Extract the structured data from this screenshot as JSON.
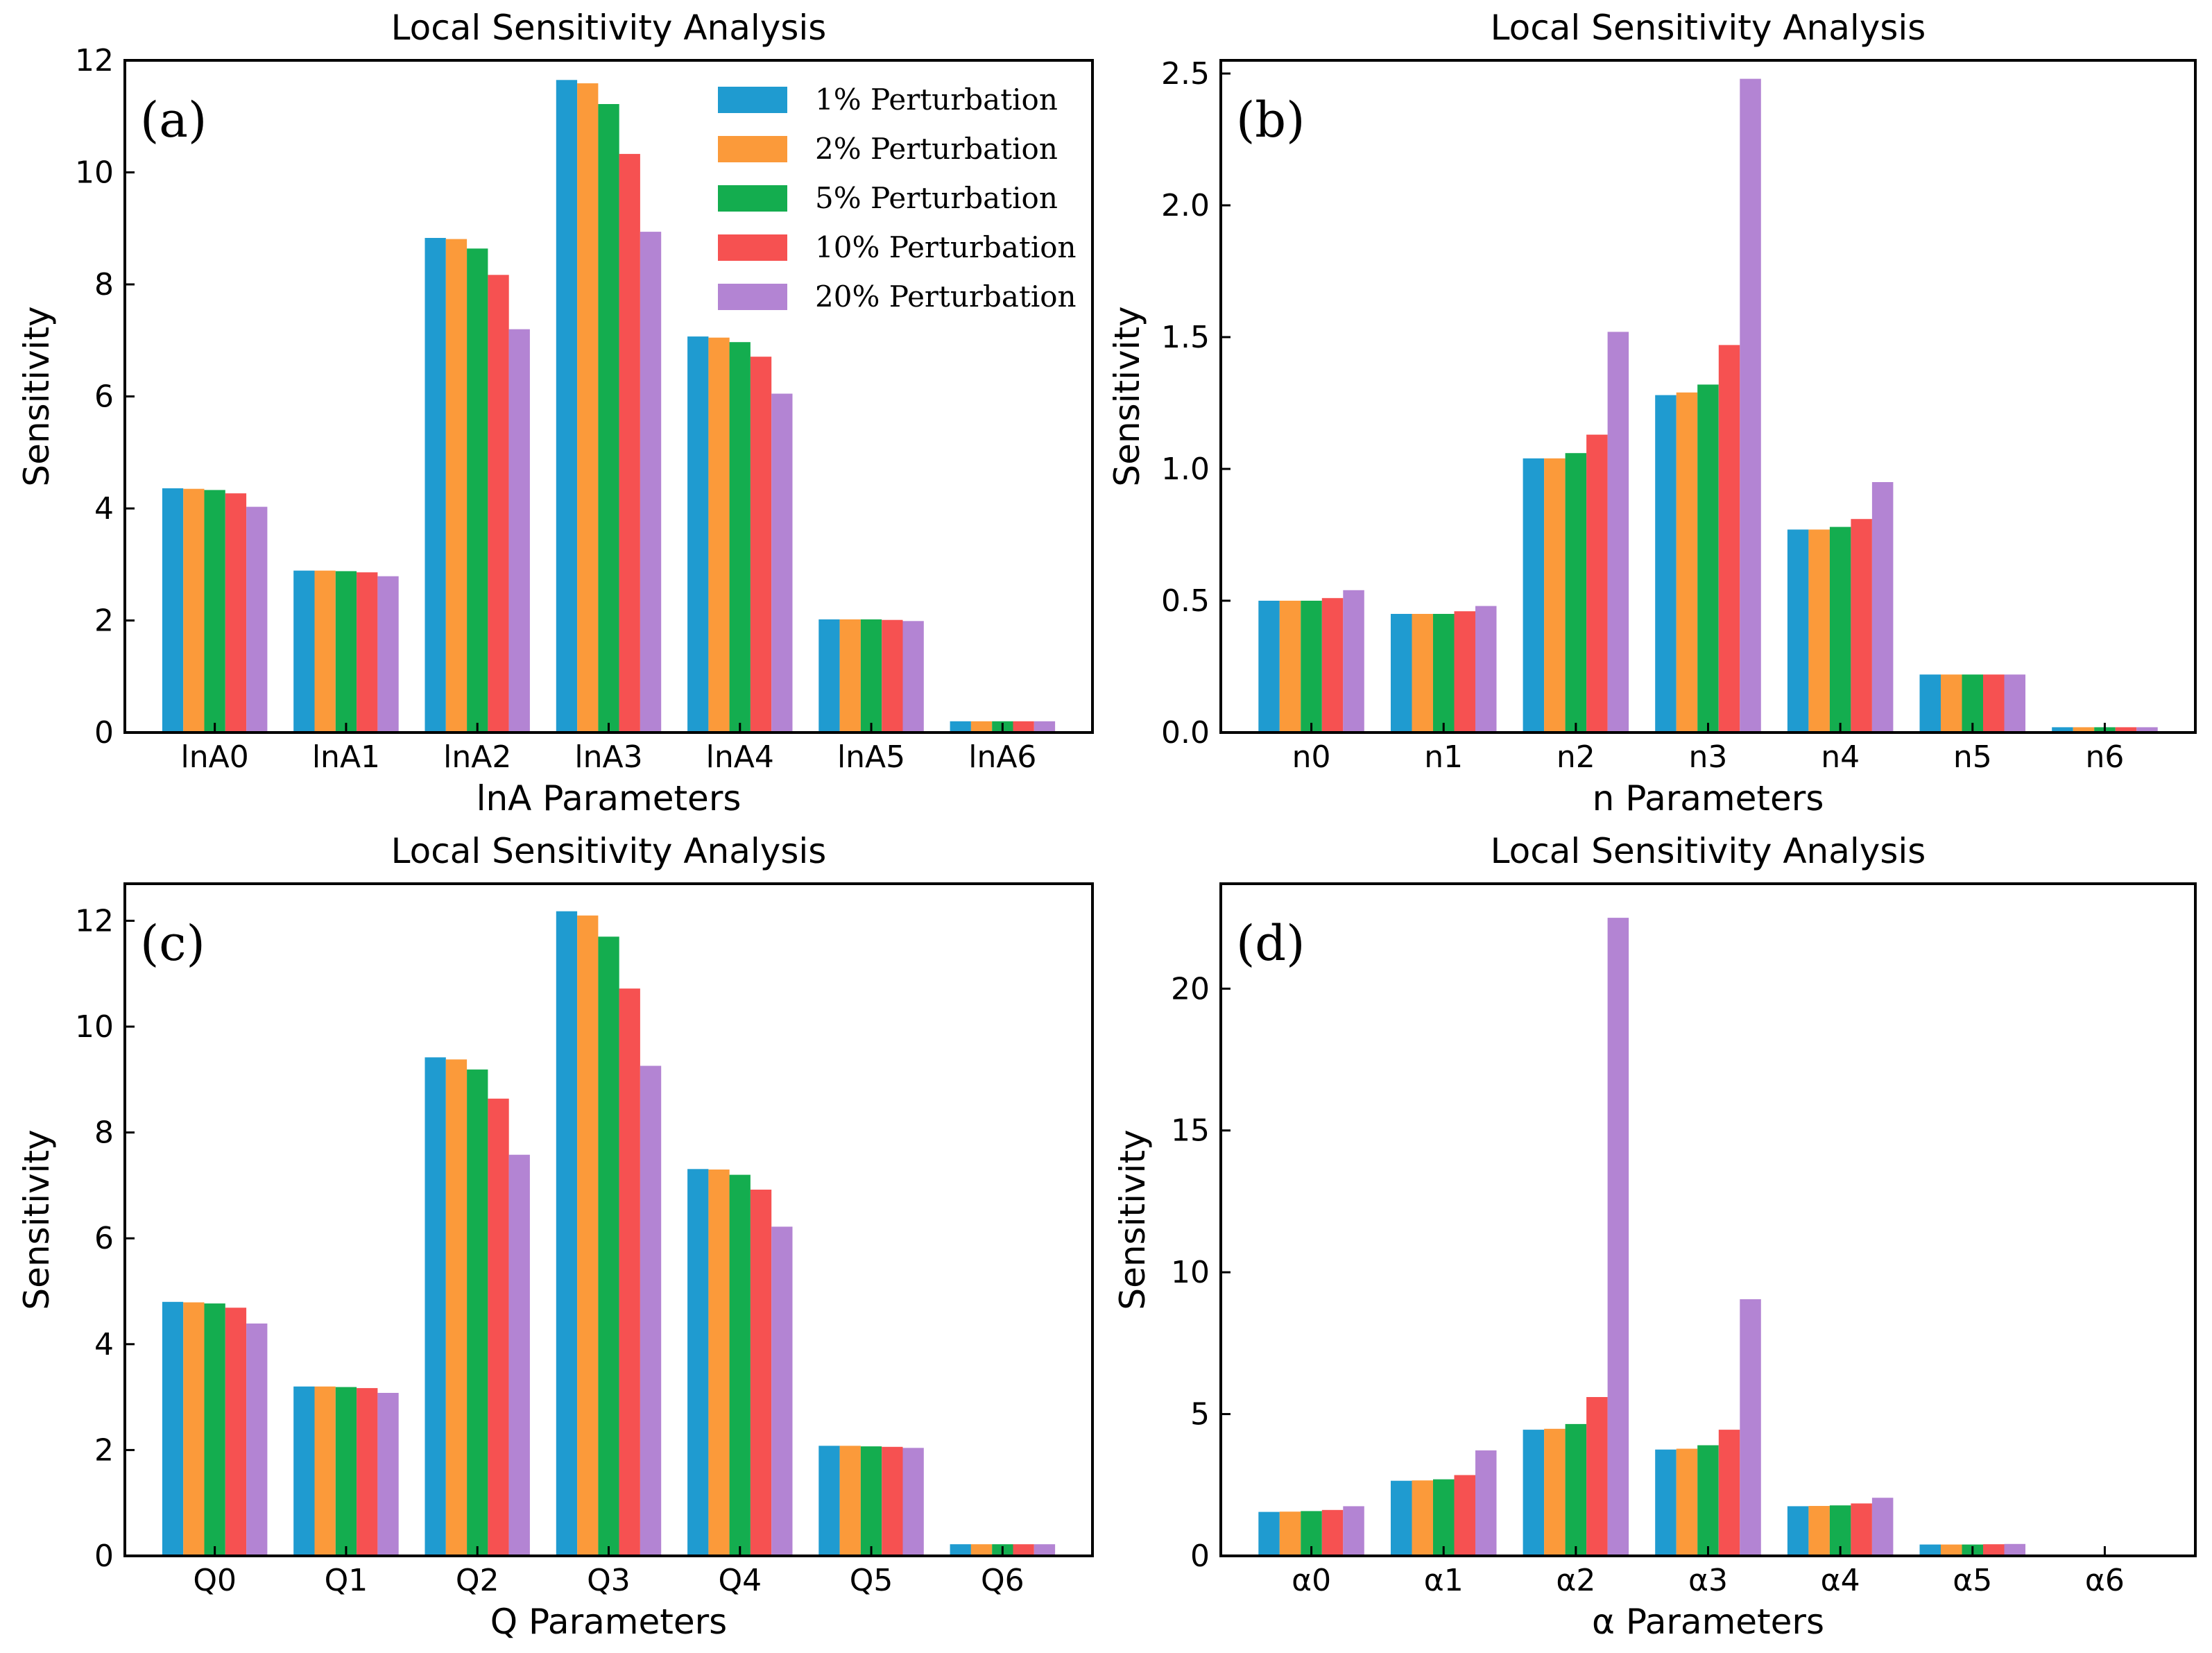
{
  "colors": {
    "p1": "#1f9bd0",
    "p2": "#fb9a3a",
    "p5": "#14ad4f",
    "p10": "#f65151",
    "p20": "#b384d3"
  },
  "legend": [
    {
      "label": "1% Perturbation",
      "color_key": "p1"
    },
    {
      "label": "2% Perturbation",
      "color_key": "p2"
    },
    {
      "label": "5% Perturbation",
      "color_key": "p5"
    },
    {
      "label": "10% Perturbation",
      "color_key": "p10"
    },
    {
      "label": "20% Perturbation",
      "color_key": "p20"
    }
  ],
  "chart_data": [
    {
      "type": "bar",
      "panel_label": "(a)",
      "title": "Local Sensitivity Analysis",
      "xlabel": "lnA Parameters",
      "ylabel": "Sensitivity",
      "ylim": [
        0,
        12
      ],
      "yticks": [
        0,
        2,
        4,
        6,
        8,
        10,
        12
      ],
      "ytick_labels": [
        "0",
        "2",
        "4",
        "6",
        "8",
        "10",
        "12"
      ],
      "categories": [
        "lnA0",
        "lnA1",
        "lnA2",
        "lnA3",
        "lnA4",
        "lnA5",
        "lnA6"
      ],
      "series": [
        {
          "name": "1% Perturbation",
          "values": [
            4.36,
            2.89,
            8.83,
            11.65,
            7.07,
            2.02,
            0.2
          ]
        },
        {
          "name": "2% Perturbation",
          "values": [
            4.35,
            2.89,
            8.81,
            11.59,
            7.05,
            2.02,
            0.2
          ]
        },
        {
          "name": "5% Perturbation",
          "values": [
            4.33,
            2.88,
            8.64,
            11.22,
            6.97,
            2.02,
            0.2
          ]
        },
        {
          "name": "10% Perturbation",
          "values": [
            4.27,
            2.86,
            8.17,
            10.33,
            6.71,
            2.01,
            0.2
          ]
        },
        {
          "name": "20% Perturbation",
          "values": [
            4.03,
            2.79,
            7.2,
            8.94,
            6.05,
            1.99,
            0.2
          ]
        }
      ]
    },
    {
      "type": "bar",
      "panel_label": "(b)",
      "title": "Local Sensitivity Analysis",
      "xlabel": "n Parameters",
      "ylabel": "Sensitivity",
      "ylim": [
        0,
        2.55
      ],
      "yticks": [
        0,
        0.5,
        1.0,
        1.5,
        2.0,
        2.5
      ],
      "ytick_labels": [
        "0.0",
        "0.5",
        "1.0",
        "1.5",
        "2.0",
        "2.5"
      ],
      "categories": [
        "n0",
        "n1",
        "n2",
        "n3",
        "n4",
        "n5",
        "n6"
      ],
      "series": [
        {
          "name": "1% Perturbation",
          "values": [
            0.5,
            0.45,
            1.04,
            1.28,
            0.77,
            0.22,
            0.02
          ]
        },
        {
          "name": "2% Perturbation",
          "values": [
            0.5,
            0.45,
            1.04,
            1.29,
            0.77,
            0.22,
            0.02
          ]
        },
        {
          "name": "5% Perturbation",
          "values": [
            0.5,
            0.45,
            1.06,
            1.32,
            0.78,
            0.22,
            0.02
          ]
        },
        {
          "name": "10% Perturbation",
          "values": [
            0.51,
            0.46,
            1.13,
            1.47,
            0.81,
            0.22,
            0.02
          ]
        },
        {
          "name": "20% Perturbation",
          "values": [
            0.54,
            0.48,
            1.52,
            2.48,
            0.95,
            0.22,
            0.02
          ]
        }
      ]
    },
    {
      "type": "bar",
      "panel_label": "(c)",
      "title": "Local Sensitivity Analysis",
      "xlabel": "Q Parameters",
      "ylabel": "Sensitivity",
      "ylim": [
        0,
        12.7
      ],
      "yticks": [
        0,
        2,
        4,
        6,
        8,
        10,
        12
      ],
      "ytick_labels": [
        "0",
        "2",
        "4",
        "6",
        "8",
        "10",
        "12"
      ],
      "categories": [
        "Q0",
        "Q1",
        "Q2",
        "Q3",
        "Q4",
        "Q5",
        "Q6"
      ],
      "series": [
        {
          "name": "1% Perturbation",
          "values": [
            4.8,
            3.2,
            9.42,
            12.18,
            7.31,
            2.08,
            0.22
          ]
        },
        {
          "name": "2% Perturbation",
          "values": [
            4.79,
            3.2,
            9.38,
            12.1,
            7.3,
            2.08,
            0.22
          ]
        },
        {
          "name": "5% Perturbation",
          "values": [
            4.77,
            3.19,
            9.19,
            11.7,
            7.2,
            2.07,
            0.22
          ]
        },
        {
          "name": "10% Perturbation",
          "values": [
            4.69,
            3.17,
            8.64,
            10.72,
            6.92,
            2.06,
            0.22
          ]
        },
        {
          "name": "20% Perturbation",
          "values": [
            4.39,
            3.08,
            7.58,
            9.26,
            6.22,
            2.04,
            0.22
          ]
        }
      ]
    },
    {
      "type": "bar",
      "panel_label": "(d)",
      "title": "Local Sensitivity Analysis",
      "xlabel": "α Parameters",
      "ylabel": "Sensitivity",
      "ylim": [
        0,
        23.7
      ],
      "yticks": [
        0,
        5,
        10,
        15,
        20
      ],
      "ytick_labels": [
        "0",
        "5",
        "10",
        "15",
        "20"
      ],
      "categories": [
        "α0",
        "α1",
        "α2",
        "α3",
        "α4",
        "α5",
        "α6"
      ],
      "series": [
        {
          "name": "1% Perturbation",
          "values": [
            1.55,
            2.65,
            4.45,
            3.75,
            1.75,
            0.4,
            0.03
          ]
        },
        {
          "name": "2% Perturbation",
          "values": [
            1.56,
            2.66,
            4.48,
            3.78,
            1.76,
            0.4,
            0.03
          ]
        },
        {
          "name": "5% Perturbation",
          "values": [
            1.58,
            2.7,
            4.65,
            3.9,
            1.78,
            0.4,
            0.03
          ]
        },
        {
          "name": "10% Perturbation",
          "values": [
            1.62,
            2.85,
            5.6,
            4.45,
            1.85,
            0.41,
            0.03
          ]
        },
        {
          "name": "20% Perturbation",
          "values": [
            1.75,
            3.72,
            22.5,
            9.05,
            2.05,
            0.42,
            0.03
          ]
        }
      ]
    }
  ]
}
